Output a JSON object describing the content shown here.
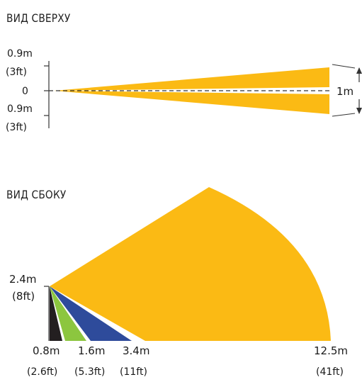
{
  "top_view": {
    "title": "ВИД СВЕРХУ",
    "labels": {
      "upper_m": "0.9m",
      "upper_ft": "(3ft)",
      "center": "0",
      "lower_m": "0.9m",
      "lower_ft": "(3ft)",
      "width": "1m"
    }
  },
  "side_view": {
    "title": "ВИД СБОКУ",
    "height_m": "2.4m",
    "height_ft": "(8ft)",
    "distances": [
      {
        "m": "0.8m",
        "ft": "(2.6ft)"
      },
      {
        "m": "1.6m",
        "ft": "(5.3ft)"
      },
      {
        "m": "3.4m",
        "ft": "(11ft)"
      },
      {
        "m": "12.5m",
        "ft": "(41ft)"
      }
    ]
  },
  "colors": {
    "main": "#FBBA14",
    "dark": "#231F20",
    "green": "#8CC63F",
    "blue": "#2E4B9B",
    "line": "#333333"
  }
}
